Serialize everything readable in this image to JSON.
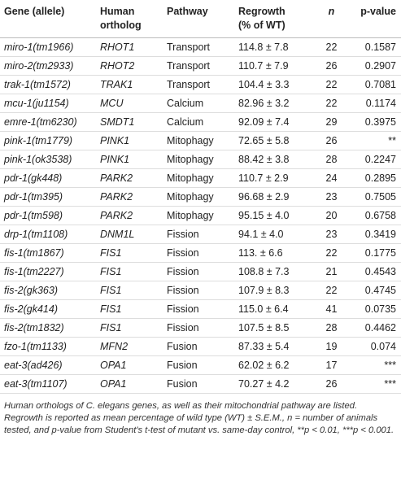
{
  "table": {
    "header": [
      [
        "Gene (allele)"
      ],
      [
        "Human",
        "ortholog"
      ],
      [
        "Pathway"
      ],
      [
        "Regrowth",
        "(% of WT)"
      ],
      [
        "n"
      ],
      [
        "p-value"
      ]
    ],
    "rows": [
      [
        "miro-1(tm1966)",
        "RHOT1",
        "Transport",
        "114.8 ± 7.8",
        "22",
        "0.1587"
      ],
      [
        "miro-2(tm2933)",
        "RHOT2",
        "Transport",
        "110.7 ± 7.9",
        "26",
        "0.2907"
      ],
      [
        "trak-1(tm1572)",
        "TRAK1",
        "Transport",
        "104.4 ± 3.3",
        "22",
        "0.7081"
      ],
      [
        "mcu-1(ju1154)",
        "MCU",
        "Calcium",
        "82.96 ± 3.2",
        "22",
        "0.1174"
      ],
      [
        "emre-1(tm6230)",
        "SMDT1",
        "Calcium",
        "92.09 ± 7.4",
        "29",
        "0.3975"
      ],
      [
        "pink-1(tm1779)",
        "PINK1",
        "Mitophagy",
        "72.65 ± 5.8",
        "26",
        "**"
      ],
      [
        "pink-1(ok3538)",
        "PINK1",
        "Mitophagy",
        "88.42 ± 3.8",
        "28",
        "0.2247"
      ],
      [
        "pdr-1(gk448)",
        "PARK2",
        "Mitophagy",
        "110.7 ± 2.9",
        "24",
        "0.2895"
      ],
      [
        "pdr-1(tm395)",
        "PARK2",
        "Mitophagy",
        "96.68 ± 2.9",
        "23",
        "0.7505"
      ],
      [
        "pdr-1(tm598)",
        "PARK2",
        "Mitophagy",
        "95.15 ± 4.0",
        "20",
        "0.6758"
      ],
      [
        "drp-1(tm1108)",
        "DNM1L",
        "Fission",
        "94.1 ± 4.0",
        "23",
        "0.3419"
      ],
      [
        "fis-1(tm1867)",
        "FIS1",
        "Fission",
        "113. ± 6.6",
        "22",
        "0.1775"
      ],
      [
        "fis-1(tm2227)",
        "FIS1",
        "Fission",
        "108.8 ± 7.3",
        "21",
        "0.4543"
      ],
      [
        "fis-2(gk363)",
        "FIS1",
        "Fission",
        "107.9 ± 8.3",
        "22",
        "0.4745"
      ],
      [
        "fis-2(gk414)",
        "FIS1",
        "Fission",
        "115.0 ± 6.4",
        "41",
        "0.0735"
      ],
      [
        "fis-2(tm1832)",
        "FIS1",
        "Fission",
        "107.5 ± 8.5",
        "28",
        "0.4462"
      ],
      [
        "fzo-1(tm1133)",
        "MFN2",
        "Fusion",
        "87.33 ± 5.4",
        "19",
        "0.074"
      ],
      [
        "eat-3(ad426)",
        "OPA1",
        "Fusion",
        "62.02 ± 6.2",
        "17",
        "***"
      ],
      [
        "eat-3(tm1107)",
        "OPA1",
        "Fusion",
        "70.27 ± 4.2",
        "26",
        "***"
      ]
    ],
    "footnote": "Human orthologs of C. elegans genes, as well as their mitochondrial pathway are listed. Regrowth is reported as mean percentage of wild type (WT) ± S.E.M., n = number of animals tested, and p-value from Student's t-test of mutant vs. same-day control, **p < 0.01, ***p < 0.001."
  }
}
